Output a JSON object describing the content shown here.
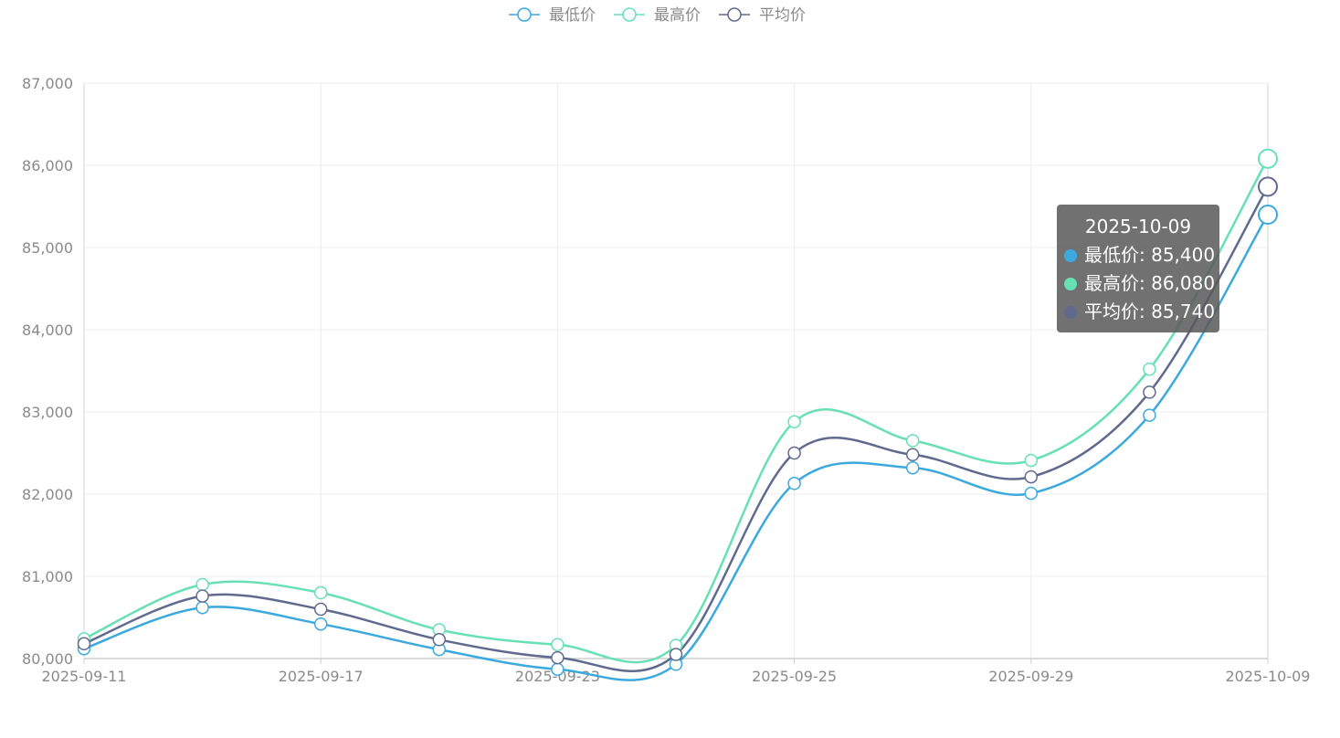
{
  "chart_data": {
    "type": "line",
    "smooth": true,
    "categories": [
      "2025-09-11",
      "",
      "2025-09-17",
      "",
      "2025-09-23",
      "",
      "2025-09-25",
      "",
      "2025-09-29",
      "",
      "2025-10-09"
    ],
    "x_tick_labels": [
      "2025-09-11",
      "2025-09-17",
      "2025-09-23",
      "2025-09-25",
      "2025-09-29",
      "2025-10-09"
    ],
    "y_tick_labels": [
      "80,000",
      "81,000",
      "82,000",
      "83,000",
      "84,000",
      "85,000",
      "86,000",
      "87,000"
    ],
    "ylim": [
      80000,
      87000
    ],
    "grid": true,
    "legend_position": "top-center",
    "series": [
      {
        "name": "最低价",
        "color": "#3ba9dd",
        "values": [
          80120,
          80620,
          80420,
          80110,
          79870,
          79930,
          82130,
          82320,
          82010,
          82960,
          85400
        ]
      },
      {
        "name": "最高价",
        "color": "#67e0b4",
        "values": [
          80240,
          80900,
          80800,
          80350,
          80170,
          80160,
          82880,
          82650,
          82410,
          83520,
          86080
        ]
      },
      {
        "name": "平均价",
        "color": "#5f6a8e",
        "values": [
          80180,
          80760,
          80600,
          80230,
          80010,
          80050,
          82500,
          82480,
          82210,
          83240,
          85740
        ]
      }
    ],
    "tooltip": {
      "title": "2025-10-09",
      "rows": [
        {
          "label": "最低价: 85,400",
          "color": "#3ba9dd"
        },
        {
          "label": "最高价: 86,080",
          "color": "#67e0b4"
        },
        {
          "label": "平均价: 85,740",
          "color": "#5f6a8e"
        }
      ]
    }
  }
}
